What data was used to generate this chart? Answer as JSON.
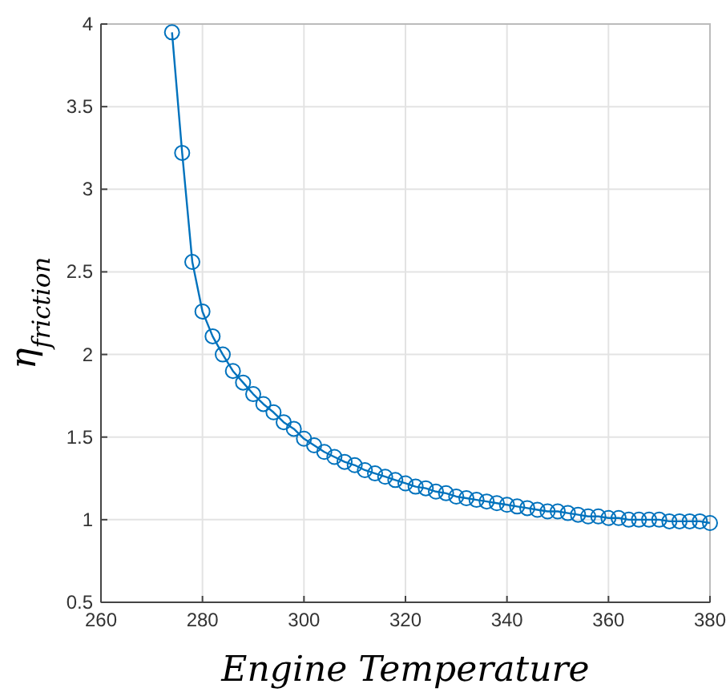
{
  "chart_data": {
    "type": "line",
    "xlabel": "Engine Temperature",
    "ylabel": "η$_{friction}$",
    "x": [
      274,
      276,
      278,
      280,
      282,
      284,
      286,
      288,
      290,
      292,
      294,
      296,
      298,
      300,
      302,
      304,
      306,
      308,
      310,
      312,
      314,
      316,
      318,
      320,
      322,
      324,
      326,
      328,
      330,
      332,
      334,
      336,
      338,
      340,
      342,
      344,
      346,
      348,
      350,
      352,
      354,
      356,
      358,
      360,
      362,
      364,
      366,
      368,
      370,
      372,
      374,
      376,
      378,
      380
    ],
    "series": [
      {
        "color": "#0072bd",
        "values": [
          3.95,
          3.22,
          2.56,
          2.26,
          2.11,
          2.0,
          1.9,
          1.83,
          1.76,
          1.7,
          1.65,
          1.59,
          1.55,
          1.49,
          1.45,
          1.41,
          1.38,
          1.35,
          1.33,
          1.3,
          1.28,
          1.26,
          1.24,
          1.22,
          1.2,
          1.19,
          1.17,
          1.16,
          1.14,
          1.13,
          1.12,
          1.11,
          1.1,
          1.09,
          1.08,
          1.07,
          1.06,
          1.05,
          1.05,
          1.04,
          1.03,
          1.02,
          1.02,
          1.01,
          1.01,
          1.0,
          1.0,
          1.0,
          1.0,
          0.99,
          0.99,
          0.99,
          0.99,
          0.98
        ]
      }
    ],
    "xlim": [
      260,
      380
    ],
    "xticks": [
      260,
      280,
      300,
      320,
      340,
      360,
      380
    ],
    "ylim": [
      0.5,
      4
    ],
    "yticks": [
      0.5,
      1,
      1.5,
      2,
      2.5,
      3,
      3.5,
      4
    ],
    "grid": true,
    "marker": "circle",
    "line_style": "solid"
  }
}
